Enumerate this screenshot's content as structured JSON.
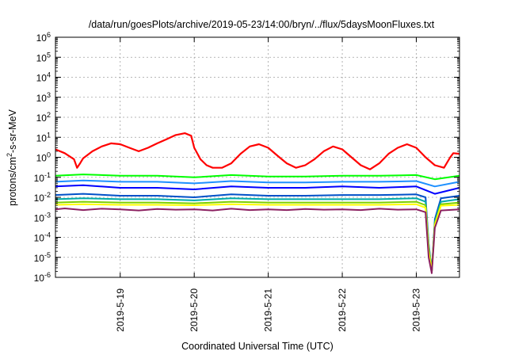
{
  "chart_data": {
    "type": "line",
    "title": "/data/run/goesPlots/archive/2019-05-23/14:00/bryn/../flux/5daysMoonFluxes.txt",
    "xlabel": "Coordinated Universal Time (UTC)",
    "ylabel": "protons/cm2-s-sr-MeV",
    "ylabel_parts": {
      "base": "protons/cm",
      "sup": "2",
      "rest": "-s-sr-MeV"
    },
    "y_scale": "log",
    "ylim": [
      1e-06,
      1000000.0
    ],
    "y_ticks": [
      {
        "exp": 6,
        "base": "10",
        "sup": "6"
      },
      {
        "exp": 5,
        "base": "10",
        "sup": "5"
      },
      {
        "exp": 4,
        "base": "10",
        "sup": "4"
      },
      {
        "exp": 3,
        "base": "10",
        "sup": "3"
      },
      {
        "exp": 2,
        "base": "10",
        "sup": "2"
      },
      {
        "exp": 1,
        "base": "10",
        "sup": "1"
      },
      {
        "exp": 0,
        "base": "10",
        "sup": "0"
      },
      {
        "exp": -1,
        "base": "10",
        "sup": "-1"
      },
      {
        "exp": -2,
        "base": "10",
        "sup": "-2"
      },
      {
        "exp": -3,
        "base": "10",
        "sup": "-3"
      },
      {
        "exp": -4,
        "base": "10",
        "sup": "-4"
      },
      {
        "exp": -5,
        "base": "10",
        "sup": "-5"
      },
      {
        "exp": -6,
        "base": "10",
        "sup": "-6"
      }
    ],
    "xlim": [
      "2019-05-18T03:00",
      "2019-05-23T14:00"
    ],
    "x_ticks": [
      {
        "at": "2019-05-19T00:00",
        "label": "2019-5-19"
      },
      {
        "at": "2019-05-20T00:00",
        "label": "2019-5-20"
      },
      {
        "at": "2019-05-21T00:00",
        "label": "2019-5-21"
      },
      {
        "at": "2019-05-22T00:00",
        "label": "2019-5-22"
      },
      {
        "at": "2019-05-23T00:00",
        "label": "2019-5-23"
      }
    ],
    "grid": true,
    "legend": "none",
    "series": [
      {
        "color": "#ff0000",
        "width": 2.2,
        "points": [
          [
            "2019-05-18T03:00",
            2.5
          ],
          [
            "2019-05-18T06:00",
            1.6
          ],
          [
            "2019-05-18T09:00",
            0.8
          ],
          [
            "2019-05-18T10:00",
            0.3
          ],
          [
            "2019-05-18T11:00",
            0.5
          ],
          [
            "2019-05-18T12:00",
            0.9
          ],
          [
            "2019-05-18T15:00",
            2.0
          ],
          [
            "2019-05-18T18:00",
            3.5
          ],
          [
            "2019-05-18T21:00",
            5.0
          ],
          [
            "2019-05-19T00:00",
            4.5
          ],
          [
            "2019-05-19T03:00",
            3.0
          ],
          [
            "2019-05-19T06:00",
            2.0
          ],
          [
            "2019-05-19T09:00",
            3.0
          ],
          [
            "2019-05-19T12:00",
            5.0
          ],
          [
            "2019-05-19T15:00",
            8.0
          ],
          [
            "2019-05-19T18:00",
            13.0
          ],
          [
            "2019-05-19T21:00",
            16.0
          ],
          [
            "2019-05-19T23:00",
            12.0
          ],
          [
            "2019-05-20T00:00",
            3.0
          ],
          [
            "2019-05-20T02:00",
            0.8
          ],
          [
            "2019-05-20T04:00",
            0.4
          ],
          [
            "2019-05-20T06:00",
            0.3
          ],
          [
            "2019-05-20T09:00",
            0.3
          ],
          [
            "2019-05-20T12:00",
            0.5
          ],
          [
            "2019-05-20T15:00",
            1.5
          ],
          [
            "2019-05-20T18:00",
            3.5
          ],
          [
            "2019-05-20T21:00",
            4.5
          ],
          [
            "2019-05-21T00:00",
            3.0
          ],
          [
            "2019-05-21T03:00",
            1.2
          ],
          [
            "2019-05-21T06:00",
            0.5
          ],
          [
            "2019-05-21T09:00",
            0.3
          ],
          [
            "2019-05-21T12:00",
            0.4
          ],
          [
            "2019-05-21T15:00",
            0.8
          ],
          [
            "2019-05-21T18:00",
            2.0
          ],
          [
            "2019-05-21T21:00",
            3.5
          ],
          [
            "2019-05-22T00:00",
            2.5
          ],
          [
            "2019-05-22T03:00",
            1.0
          ],
          [
            "2019-05-22T06:00",
            0.4
          ],
          [
            "2019-05-22T09:00",
            0.25
          ],
          [
            "2019-05-22T12:00",
            0.5
          ],
          [
            "2019-05-22T15:00",
            1.5
          ],
          [
            "2019-05-22T18:00",
            3.0
          ],
          [
            "2019-05-22T21:00",
            4.5
          ],
          [
            "2019-05-23T00:00",
            3.0
          ],
          [
            "2019-05-23T03:00",
            1.0
          ],
          [
            "2019-05-23T06:00",
            0.4
          ],
          [
            "2019-05-23T09:00",
            0.3
          ],
          [
            "2019-05-23T11:00",
            1.0
          ],
          [
            "2019-05-23T12:00",
            1.6
          ],
          [
            "2019-05-23T14:00",
            1.5
          ]
        ]
      },
      {
        "color": "#00ff00",
        "width": 2,
        "points": [
          [
            "2019-05-18T03:00",
            0.12
          ],
          [
            "2019-05-18T12:00",
            0.14
          ],
          [
            "2019-05-19T00:00",
            0.12
          ],
          [
            "2019-05-19T12:00",
            0.12
          ],
          [
            "2019-05-20T00:00",
            0.1
          ],
          [
            "2019-05-20T12:00",
            0.13
          ],
          [
            "2019-05-21T00:00",
            0.11
          ],
          [
            "2019-05-21T12:00",
            0.11
          ],
          [
            "2019-05-22T00:00",
            0.12
          ],
          [
            "2019-05-22T12:00",
            0.12
          ],
          [
            "2019-05-23T00:00",
            0.13
          ],
          [
            "2019-05-23T06:00",
            0.08
          ],
          [
            "2019-05-23T14:00",
            0.12
          ]
        ]
      },
      {
        "color": "#1e90ff",
        "width": 2,
        "points": [
          [
            "2019-05-18T03:00",
            0.06
          ],
          [
            "2019-05-18T12:00",
            0.07
          ],
          [
            "2019-05-19T00:00",
            0.06
          ],
          [
            "2019-05-19T12:00",
            0.06
          ],
          [
            "2019-05-20T00:00",
            0.05
          ],
          [
            "2019-05-20T12:00",
            0.065
          ],
          [
            "2019-05-21T00:00",
            0.055
          ],
          [
            "2019-05-21T12:00",
            0.055
          ],
          [
            "2019-05-22T00:00",
            0.06
          ],
          [
            "2019-05-22T12:00",
            0.06
          ],
          [
            "2019-05-23T00:00",
            0.065
          ],
          [
            "2019-05-23T06:00",
            0.035
          ],
          [
            "2019-05-23T14:00",
            0.06
          ]
        ]
      },
      {
        "color": "#0000ff",
        "width": 2,
        "points": [
          [
            "2019-05-18T03:00",
            0.035
          ],
          [
            "2019-05-18T12:00",
            0.04
          ],
          [
            "2019-05-19T00:00",
            0.03
          ],
          [
            "2019-05-19T12:00",
            0.03
          ],
          [
            "2019-05-20T00:00",
            0.025
          ],
          [
            "2019-05-20T12:00",
            0.035
          ],
          [
            "2019-05-21T00:00",
            0.03
          ],
          [
            "2019-05-21T12:00",
            0.03
          ],
          [
            "2019-05-22T00:00",
            0.035
          ],
          [
            "2019-05-22T12:00",
            0.03
          ],
          [
            "2019-05-23T00:00",
            0.035
          ],
          [
            "2019-05-23T06:00",
            0.015
          ],
          [
            "2019-05-23T14:00",
            0.03
          ]
        ]
      },
      {
        "color": "#0050c8",
        "width": 2,
        "points": [
          [
            "2019-05-18T03:00",
            0.013
          ],
          [
            "2019-05-18T12:00",
            0.015
          ],
          [
            "2019-05-19T00:00",
            0.012
          ],
          [
            "2019-05-19T12:00",
            0.012
          ],
          [
            "2019-05-20T00:00",
            0.01
          ],
          [
            "2019-05-20T12:00",
            0.014
          ],
          [
            "2019-05-21T00:00",
            0.012
          ],
          [
            "2019-05-21T12:00",
            0.012
          ],
          [
            "2019-05-22T00:00",
            0.013
          ],
          [
            "2019-05-22T12:00",
            0.013
          ],
          [
            "2019-05-23T00:00",
            0.014
          ],
          [
            "2019-05-23T03:00",
            0.01
          ],
          [
            "2019-05-23T04:00",
            5e-05
          ],
          [
            "2019-05-23T05:00",
            2e-06
          ],
          [
            "2019-05-23T06:00",
            0.0008
          ],
          [
            "2019-05-23T08:00",
            0.009
          ],
          [
            "2019-05-23T14:00",
            0.012
          ]
        ]
      },
      {
        "color": "#00aaaa",
        "width": 2,
        "points": [
          [
            "2019-05-18T03:00",
            0.008
          ],
          [
            "2019-05-18T12:00",
            0.009
          ],
          [
            "2019-05-19T00:00",
            0.008
          ],
          [
            "2019-05-19T12:00",
            0.008
          ],
          [
            "2019-05-20T00:00",
            0.007
          ],
          [
            "2019-05-20T12:00",
            0.009
          ],
          [
            "2019-05-21T00:00",
            0.008
          ],
          [
            "2019-05-21T12:00",
            0.008
          ],
          [
            "2019-05-22T00:00",
            0.008
          ],
          [
            "2019-05-22T12:00",
            0.008
          ],
          [
            "2019-05-23T00:00",
            0.009
          ],
          [
            "2019-05-23T03:00",
            0.006
          ],
          [
            "2019-05-23T04:00",
            4e-05
          ],
          [
            "2019-05-23T05:00",
            2e-06
          ],
          [
            "2019-05-23T06:00",
            0.0006
          ],
          [
            "2019-05-23T08:00",
            0.006
          ],
          [
            "2019-05-23T14:00",
            0.008
          ]
        ]
      },
      {
        "color": "#7cd000",
        "width": 2,
        "points": [
          [
            "2019-05-18T03:00",
            0.0055
          ],
          [
            "2019-05-18T12:00",
            0.006
          ],
          [
            "2019-05-19T00:00",
            0.0055
          ],
          [
            "2019-05-19T12:00",
            0.0055
          ],
          [
            "2019-05-20T00:00",
            0.005
          ],
          [
            "2019-05-20T12:00",
            0.006
          ],
          [
            "2019-05-21T00:00",
            0.0055
          ],
          [
            "2019-05-21T12:00",
            0.0055
          ],
          [
            "2019-05-22T00:00",
            0.0055
          ],
          [
            "2019-05-22T12:00",
            0.0055
          ],
          [
            "2019-05-23T00:00",
            0.006
          ],
          [
            "2019-05-23T03:00",
            0.004
          ],
          [
            "2019-05-23T04:00",
            3e-05
          ],
          [
            "2019-05-23T05:00",
            2e-06
          ],
          [
            "2019-05-23T06:00",
            0.0005
          ],
          [
            "2019-05-23T08:00",
            0.0045
          ],
          [
            "2019-05-23T14:00",
            0.0055
          ]
        ]
      },
      {
        "color": "#ffff00",
        "width": 2,
        "points": [
          [
            "2019-05-18T03:00",
            0.0042
          ],
          [
            "2019-05-18T12:00",
            0.0045
          ],
          [
            "2019-05-19T00:00",
            0.0042
          ],
          [
            "2019-05-19T12:00",
            0.0042
          ],
          [
            "2019-05-20T00:00",
            0.004
          ],
          [
            "2019-05-20T12:00",
            0.0045
          ],
          [
            "2019-05-21T00:00",
            0.0042
          ],
          [
            "2019-05-21T12:00",
            0.0042
          ],
          [
            "2019-05-22T00:00",
            0.0042
          ],
          [
            "2019-05-22T12:00",
            0.0042
          ],
          [
            "2019-05-23T00:00",
            0.0045
          ],
          [
            "2019-05-23T03:00",
            0.003
          ],
          [
            "2019-05-23T04:00",
            2e-05
          ],
          [
            "2019-05-23T05:00",
            2e-06
          ],
          [
            "2019-05-23T06:00",
            0.0004
          ],
          [
            "2019-05-23T08:00",
            0.0038
          ],
          [
            "2019-05-23T14:00",
            0.0042
          ]
        ]
      },
      {
        "color": "#8b2060",
        "width": 2,
        "points": [
          [
            "2019-05-18T03:00",
            0.0025
          ],
          [
            "2019-05-18T06:00",
            0.0028
          ],
          [
            "2019-05-18T12:00",
            0.0023
          ],
          [
            "2019-05-18T18:00",
            0.0027
          ],
          [
            "2019-05-19T00:00",
            0.0025
          ],
          [
            "2019-05-19T06:00",
            0.0022
          ],
          [
            "2019-05-19T12:00",
            0.0026
          ],
          [
            "2019-05-19T18:00",
            0.0024
          ],
          [
            "2019-05-20T00:00",
            0.0025
          ],
          [
            "2019-05-20T06:00",
            0.0022
          ],
          [
            "2019-05-20T12:00",
            0.0027
          ],
          [
            "2019-05-20T18:00",
            0.0023
          ],
          [
            "2019-05-21T00:00",
            0.0025
          ],
          [
            "2019-05-21T06:00",
            0.0023
          ],
          [
            "2019-05-21T12:00",
            0.0026
          ],
          [
            "2019-05-21T18:00",
            0.0024
          ],
          [
            "2019-05-22T00:00",
            0.0025
          ],
          [
            "2019-05-22T06:00",
            0.0023
          ],
          [
            "2019-05-22T12:00",
            0.0027
          ],
          [
            "2019-05-22T18:00",
            0.0024
          ],
          [
            "2019-05-23T00:00",
            0.0025
          ],
          [
            "2019-05-23T03:00",
            0.0018
          ],
          [
            "2019-05-23T04:00",
            1e-05
          ],
          [
            "2019-05-23T05:00",
            1.6e-06
          ],
          [
            "2019-05-23T06:00",
            0.0003
          ],
          [
            "2019-05-23T08:00",
            0.0022
          ],
          [
            "2019-05-23T14:00",
            0.0025
          ]
        ]
      }
    ]
  }
}
